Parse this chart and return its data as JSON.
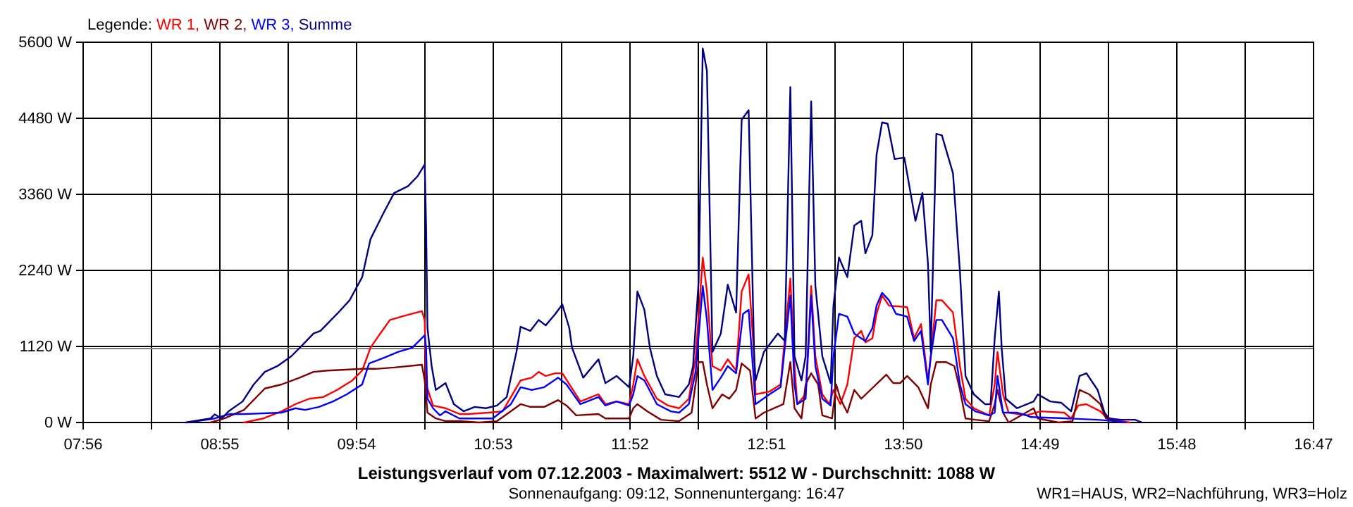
{
  "chart_data": {
    "type": "line",
    "title": "Leistungsverlauf vom 07.12.2003 - Maximalwert: 5512 W - Durchschnitt: 1088 W",
    "subtitle": "Sonnenaufgang: 09:12, Sonnenuntergang: 16:47",
    "legend_title": "Legende:",
    "annotations": [
      "WR1=HAUS, WR2=Nachführung, WR3=Holz"
    ],
    "legend": "top left",
    "grid": true,
    "marker": "none",
    "line_style": "solid",
    "xlim": [
      7.9333,
      16.7833
    ],
    "xticks": [
      {
        "value": 7.9333,
        "label": "07:56"
      },
      {
        "value": 8.425,
        "label": null
      },
      {
        "value": 8.9167,
        "label": "08:55"
      },
      {
        "value": 9.4083,
        "label": null
      },
      {
        "value": 9.9,
        "label": "09:54"
      },
      {
        "value": 10.3917,
        "label": null
      },
      {
        "value": 10.8833,
        "label": "10:53"
      },
      {
        "value": 11.375,
        "label": null
      },
      {
        "value": 11.8667,
        "label": "11:52"
      },
      {
        "value": 12.3583,
        "label": null
      },
      {
        "value": 12.85,
        "label": "12:51"
      },
      {
        "value": 13.3417,
        "label": null
      },
      {
        "value": 13.8333,
        "label": "13:50"
      },
      {
        "value": 14.325,
        "label": null
      },
      {
        "value": 14.8167,
        "label": "14:49"
      },
      {
        "value": 15.3083,
        "label": null
      },
      {
        "value": 15.8,
        "label": "15:48"
      },
      {
        "value": 16.2917,
        "label": null
      },
      {
        "value": 16.7833,
        "label": "16:47"
      }
    ],
    "ylim": [
      0,
      5600
    ],
    "yticks": [
      {
        "value": 0,
        "label": "0 W"
      },
      {
        "value": 1120,
        "label": "1120 W"
      },
      {
        "value": 2240,
        "label": "2240 W"
      },
      {
        "value": 3360,
        "label": "3360 W"
      },
      {
        "value": 4480,
        "label": "4480 W"
      },
      {
        "value": 5600,
        "label": "5600 W"
      }
    ],
    "ref_lines": [
      {
        "axis": "y",
        "value": 1088,
        "color": "#808080"
      }
    ],
    "series": [
      {
        "name": "WR 1,",
        "color": "#ff0000",
        "x": [
          9.09,
          9.23,
          9.36,
          9.46,
          9.56,
          9.66,
          9.76,
          9.87,
          9.94,
          10.0,
          10.07,
          10.14,
          10.24,
          10.37,
          10.39,
          10.4,
          10.45,
          10.54,
          10.64,
          10.7,
          10.85,
          10.95,
          11.01,
          11.08,
          11.16,
          11.21,
          11.26,
          11.33,
          11.38,
          11.51,
          11.64,
          11.69,
          11.77,
          11.86,
          11.89,
          11.92,
          11.97,
          12.06,
          12.14,
          12.22,
          12.29,
          12.34,
          12.39,
          12.42,
          12.46,
          12.52,
          12.57,
          12.63,
          12.67,
          12.72,
          12.76,
          12.77,
          12.87,
          12.95,
          13.02,
          13.05,
          13.07,
          13.13,
          13.17,
          13.2,
          13.25,
          13.3,
          13.33,
          13.38,
          13.43,
          13.48,
          13.53,
          13.56,
          13.61,
          13.64,
          13.68,
          13.73,
          13.86,
          13.91,
          13.96,
          14.01,
          14.03,
          14.07,
          14.11,
          14.19,
          14.24,
          14.28,
          14.34,
          14.45,
          14.49,
          14.51,
          14.55,
          14.59,
          14.72,
          14.82,
          14.99,
          15.04,
          15.09,
          15.15,
          15.25,
          15.29,
          15.4,
          15.46
        ],
        "values": [
          0,
          60,
          165,
          270,
          350,
          375,
          480,
          620,
          765,
          1100,
          1310,
          1510,
          1570,
          1640,
          1510,
          560,
          250,
          210,
          125,
          125,
          145,
          165,
          375,
          620,
          660,
          745,
          685,
          725,
          725,
          310,
          415,
          270,
          310,
          270,
          560,
          930,
          685,
          350,
          250,
          210,
          350,
          975,
          2430,
          1930,
          830,
          765,
          930,
          765,
          1930,
          2180,
          975,
          415,
          455,
          560,
          2120,
          830,
          270,
          415,
          2010,
          975,
          415,
          270,
          480,
          270,
          560,
          1240,
          1350,
          1180,
          1240,
          1600,
          1870,
          1720,
          1700,
          1240,
          1450,
          620,
          975,
          1800,
          1800,
          1620,
          830,
          350,
          210,
          105,
          560,
          1040,
          415,
          145,
          105,
          165,
          145,
          60,
          250,
          270,
          165,
          80,
          20,
          0
        ]
      },
      {
        "name": "WR 2,",
        "color": "#800000",
        "x": [
          8.85,
          8.95,
          9.09,
          9.24,
          9.36,
          9.49,
          9.59,
          9.69,
          9.94,
          10.04,
          10.17,
          10.37,
          10.39,
          10.41,
          10.47,
          10.54,
          10.64,
          10.78,
          10.91,
          11.01,
          11.08,
          11.15,
          11.25,
          11.35,
          11.41,
          11.48,
          11.64,
          11.69,
          11.86,
          11.89,
          11.92,
          11.99,
          12.09,
          12.22,
          12.31,
          12.36,
          12.39,
          12.42,
          12.46,
          12.53,
          12.58,
          12.63,
          12.67,
          12.73,
          12.77,
          12.83,
          12.97,
          13.02,
          13.05,
          13.1,
          13.13,
          13.17,
          13.22,
          13.25,
          13.32,
          13.35,
          13.38,
          13.43,
          13.48,
          13.53,
          13.71,
          13.76,
          13.81,
          13.86,
          13.94,
          14.01,
          14.03,
          14.07,
          14.14,
          14.2,
          14.24,
          14.28,
          14.35,
          14.45,
          14.49,
          14.51,
          14.55,
          14.59,
          14.77,
          14.8,
          14.95,
          15.05,
          15.1,
          15.17,
          15.25,
          15.29,
          15.4
        ],
        "values": [
          0,
          60,
          185,
          500,
          560,
          660,
          745,
          765,
          790,
          790,
          810,
          850,
          620,
          145,
          60,
          20,
          20,
          0,
          20,
          165,
          270,
          230,
          230,
          330,
          250,
          105,
          125,
          60,
          60,
          210,
          270,
          165,
          40,
          20,
          145,
          890,
          890,
          560,
          210,
          415,
          350,
          480,
          870,
          765,
          60,
          145,
          270,
          890,
          210,
          60,
          560,
          725,
          560,
          105,
          60,
          560,
          350,
          145,
          480,
          350,
          705,
          580,
          580,
          685,
          520,
          210,
          560,
          890,
          890,
          830,
          480,
          60,
          40,
          20,
          270,
          480,
          145,
          0,
          210,
          60,
          0,
          20,
          480,
          415,
          270,
          60,
          0
        ]
      },
      {
        "name": "WR 3,",
        "color": "#0000ff",
        "x": [
          8.68,
          8.88,
          8.99,
          9.09,
          9.36,
          9.46,
          9.53,
          9.63,
          9.73,
          9.83,
          9.94,
          9.99,
          10.1,
          10.2,
          10.3,
          10.39,
          10.4,
          10.41,
          10.45,
          10.5,
          10.54,
          10.64,
          10.78,
          10.88,
          11.01,
          11.08,
          11.16,
          11.25,
          11.35,
          11.41,
          11.51,
          11.64,
          11.69,
          11.77,
          11.86,
          11.89,
          11.92,
          11.97,
          12.06,
          12.16,
          12.22,
          12.29,
          12.34,
          12.39,
          12.42,
          12.46,
          12.52,
          12.57,
          12.63,
          12.68,
          12.72,
          12.76,
          12.77,
          12.87,
          12.95,
          13.02,
          13.05,
          13.07,
          13.13,
          13.17,
          13.2,
          13.25,
          13.31,
          13.33,
          13.37,
          13.43,
          13.48,
          13.53,
          13.56,
          13.61,
          13.64,
          13.68,
          13.73,
          13.78,
          13.86,
          13.91,
          13.96,
          14.01,
          14.03,
          14.07,
          14.11,
          14.19,
          14.24,
          14.28,
          14.35,
          14.45,
          14.49,
          14.51,
          14.55,
          14.65,
          14.72,
          14.75,
          15.02,
          15.23,
          15.36,
          15.43
        ],
        "values": [
          0,
          60,
          125,
          125,
          145,
          210,
          185,
          230,
          310,
          415,
          560,
          870,
          955,
          1040,
          1100,
          1285,
          1100,
          350,
          210,
          105,
          165,
          60,
          60,
          60,
          270,
          520,
          480,
          520,
          660,
          560,
          270,
          375,
          250,
          310,
          250,
          415,
          685,
          620,
          270,
          165,
          145,
          270,
          765,
          2010,
          1510,
          480,
          660,
          830,
          725,
          1600,
          1660,
          560,
          270,
          415,
          520,
          1870,
          560,
          270,
          350,
          1870,
          830,
          350,
          250,
          975,
          1600,
          1560,
          1310,
          1240,
          1200,
          1390,
          1720,
          1910,
          1800,
          1600,
          1560,
          1200,
          1350,
          560,
          975,
          1510,
          1510,
          1240,
          560,
          270,
          165,
          105,
          145,
          685,
          145,
          145,
          105,
          80,
          60,
          40,
          20,
          0
        ]
      },
      {
        "name": "Summe",
        "color": "#000080",
        "x": [
          8.67,
          8.85,
          8.88,
          8.93,
          8.98,
          9.08,
          9.16,
          9.24,
          9.33,
          9.43,
          9.51,
          9.59,
          9.64,
          9.76,
          9.85,
          9.94,
          10.0,
          10.09,
          10.17,
          10.27,
          10.34,
          10.39,
          10.4,
          10.41,
          10.44,
          10.47,
          10.54,
          10.6,
          10.67,
          10.75,
          10.83,
          10.91,
          10.98,
          11.05,
          11.08,
          11.15,
          11.21,
          11.26,
          11.33,
          11.38,
          11.43,
          11.45,
          11.53,
          11.64,
          11.69,
          11.77,
          11.86,
          11.89,
          11.92,
          11.97,
          12.01,
          12.06,
          12.12,
          12.22,
          12.29,
          12.32,
          12.36,
          12.39,
          12.42,
          12.46,
          12.52,
          12.57,
          12.63,
          12.67,
          12.72,
          12.76,
          12.77,
          12.83,
          12.93,
          12.98,
          13.02,
          13.05,
          13.1,
          13.13,
          13.17,
          13.2,
          13.25,
          13.31,
          13.33,
          13.37,
          13.43,
          13.48,
          13.53,
          13.56,
          13.61,
          13.64,
          13.68,
          13.72,
          13.77,
          13.84,
          13.89,
          13.92,
          13.97,
          14.01,
          14.03,
          14.07,
          14.11,
          14.19,
          14.24,
          14.28,
          14.34,
          14.42,
          14.46,
          14.49,
          14.52,
          14.54,
          14.57,
          14.65,
          14.77,
          14.8,
          14.89,
          14.97,
          15.04,
          15.1,
          15.15,
          15.23,
          15.28,
          15.31,
          15.4,
          15.5,
          15.55
        ],
        "values": [
          0,
          60,
          120,
          60,
          165,
          310,
          560,
          745,
          830,
          975,
          1140,
          1310,
          1350,
          1600,
          1800,
          2140,
          2700,
          3070,
          3380,
          3480,
          3630,
          3800,
          2900,
          1390,
          830,
          480,
          580,
          270,
          165,
          230,
          210,
          250,
          375,
          1040,
          1410,
          1350,
          1510,
          1430,
          1600,
          1740,
          1390,
          1100,
          660,
          930,
          580,
          685,
          520,
          975,
          1930,
          1660,
          1100,
          685,
          415,
          375,
          560,
          830,
          2070,
          5510,
          5180,
          1040,
          1310,
          2030,
          1620,
          4460,
          4600,
          975,
          620,
          1040,
          1310,
          1200,
          4940,
          975,
          620,
          975,
          4730,
          2010,
          975,
          580,
          1720,
          2430,
          2140,
          2900,
          2970,
          2490,
          2760,
          3940,
          4420,
          4400,
          3880,
          3900,
          3320,
          2970,
          3380,
          2340,
          1040,
          4250,
          4230,
          3670,
          2220,
          685,
          415,
          270,
          270,
          1240,
          1930,
          1100,
          350,
          210,
          310,
          415,
          310,
          290,
          165,
          685,
          725,
          480,
          145,
          60,
          40,
          40,
          0
        ]
      }
    ]
  }
}
